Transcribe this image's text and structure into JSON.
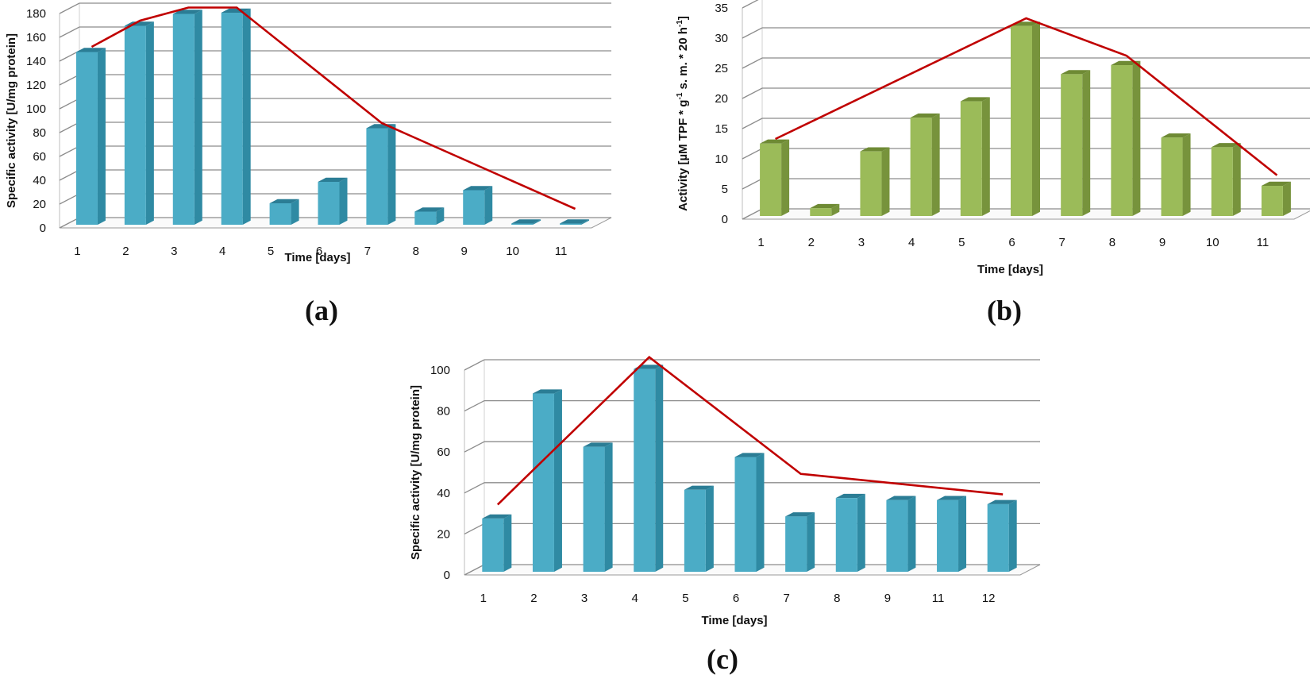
{
  "figure": {
    "panels": [
      "(a)",
      "(b)",
      "(c)"
    ]
  },
  "colors": {
    "blue_front": "#4bacc6",
    "blue_side": "#2f8aa3",
    "blue_top": "#2b7d95",
    "green_front": "#9bbb59",
    "green_side": "#77933c",
    "green_top": "#6e8a34",
    "trend": "#c00000",
    "grid": "#8c8c8c"
  },
  "chart_data": [
    {
      "id": "a",
      "panel_label": "(a)",
      "type": "bar",
      "color": "blue",
      "categories": [
        "1",
        "2",
        "3",
        "4",
        "5",
        "6",
        "7",
        "8",
        "9",
        "10",
        "11"
      ],
      "values": [
        145,
        167,
        177,
        178,
        18,
        36,
        81,
        11,
        29,
        1,
        1
      ],
      "trendline": [
        {
          "x": "1",
          "y": 148
        },
        {
          "x": "2",
          "y": 170
        },
        {
          "x": "3",
          "y": 181
        },
        {
          "x": "4",
          "y": 181
        },
        {
          "x": "7",
          "y": 84
        },
        {
          "x": "11",
          "y": 12
        }
      ],
      "yticks": [
        "0",
        "20",
        "40",
        "60",
        "80",
        "100",
        "120",
        "140",
        "160",
        "180"
      ],
      "ylim": [
        0,
        180
      ],
      "xlabel": "Time [days]",
      "ylabel": "Specific activity [U/mg protein]"
    },
    {
      "id": "b",
      "panel_label": "(b)",
      "type": "bar",
      "color": "green",
      "categories": [
        "1",
        "2",
        "3",
        "4",
        "5",
        "6",
        "7",
        "8",
        "9",
        "10",
        "11"
      ],
      "values": [
        12,
        1.3,
        10.7,
        16.3,
        19,
        31.5,
        23.5,
        25,
        13,
        11.4,
        5
      ],
      "trendline": [
        {
          "x": "1",
          "y": 12.5
        },
        {
          "x": "6",
          "y": 32.5
        },
        {
          "x": "8",
          "y": 26.3
        },
        {
          "x": "11",
          "y": 6.5
        }
      ],
      "yticks": [
        "0",
        "5",
        "10",
        "15",
        "20",
        "25",
        "30",
        "35"
      ],
      "ylim": [
        0,
        35
      ],
      "xlabel": "Time [days]",
      "ylabel": "Activity [µM TPF * g-1 s. m. * 20 h-1]",
      "ylabel_parts": {
        "pre": "Activity [µM TPF * g",
        "sup1": "-1",
        "mid": " s. m. * 20 h",
        "sup2": "-1",
        "post": "]"
      }
    },
    {
      "id": "c",
      "panel_label": "(c)",
      "type": "bar",
      "color": "blue",
      "categories": [
        "1",
        "2",
        "3",
        "4",
        "5",
        "6",
        "7",
        "8",
        "9",
        "11",
        "12"
      ],
      "values": [
        26,
        87,
        61,
        99,
        40,
        56,
        27,
        36,
        35,
        35,
        33
      ],
      "trendline": [
        {
          "x": "1",
          "y": 32
        },
        {
          "x": "4",
          "y": 104
        },
        {
          "x": "7",
          "y": 47
        },
        {
          "x": "12",
          "y": 37
        }
      ],
      "yticks": [
        "0",
        "20",
        "40",
        "60",
        "80",
        "100"
      ],
      "ylim": [
        0,
        100
      ],
      "xlabel": "Time [days]",
      "ylabel": "Specific activity [U/mg protein]"
    }
  ]
}
